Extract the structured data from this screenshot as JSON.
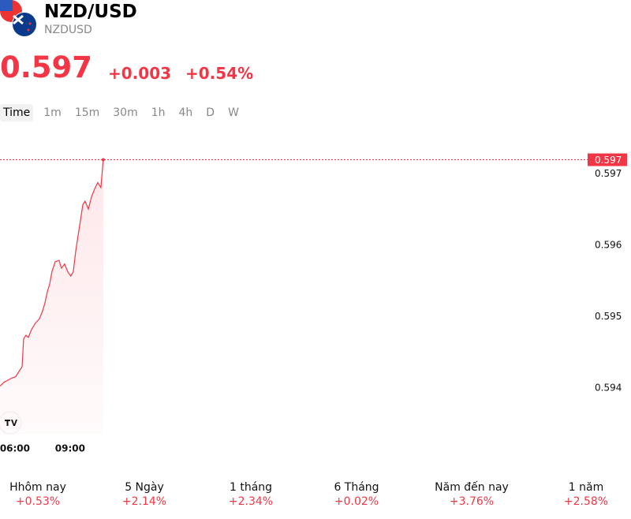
{
  "header": {
    "title": "NZD/USD",
    "symbol": "NZDUSD"
  },
  "quote": {
    "price": "0.597",
    "change": "+0.003",
    "change_percent": "+0.54%"
  },
  "tabs": [
    "Time",
    "1m",
    "15m",
    "30m",
    "1h",
    "4h",
    "D",
    "W"
  ],
  "chart_data": {
    "type": "line",
    "color": "#f23645",
    "x": [
      5.19,
      5.4,
      5.61,
      5.83,
      6.04,
      6.26,
      6.39,
      6.47,
      6.6,
      6.73,
      6.9,
      7.11,
      7.33,
      7.5,
      7.63,
      7.76,
      7.89,
      8.01,
      8.19,
      8.4,
      8.53,
      8.7,
      8.87,
      9.04,
      9.17,
      9.3,
      9.43,
      9.56,
      9.69,
      9.81,
      9.99,
      10.16,
      10.33,
      10.5,
      10.67,
      10.8
    ],
    "values": [
      0.59403,
      0.59408,
      0.59411,
      0.59414,
      0.59416,
      0.59425,
      0.5943,
      0.59469,
      0.59474,
      0.59471,
      0.59482,
      0.59491,
      0.59497,
      0.59508,
      0.59519,
      0.59535,
      0.59546,
      0.59563,
      0.59577,
      0.59579,
      0.59568,
      0.59574,
      0.59563,
      0.59557,
      0.59563,
      0.59591,
      0.59613,
      0.59635,
      0.59657,
      0.59662,
      0.59651,
      0.59668,
      0.59679,
      0.59688,
      0.59681,
      0.5972
    ],
    "xlim": [
      5.19,
      36.9
    ],
    "xticks": [
      {
        "value": 6,
        "label": "06:00"
      },
      {
        "value": 9,
        "label": "09:00"
      }
    ],
    "ylim": [
      0.59336,
      0.59767
    ],
    "yticks": [
      0.594,
      0.595,
      0.596,
      0.597
    ],
    "price_line": {
      "value": 0.5972,
      "label": "0.597"
    }
  },
  "performance": [
    {
      "period": "Hhôm nay",
      "change": "+0.53%"
    },
    {
      "period": "5 Ngày",
      "change": "+2.14%"
    },
    {
      "period": "1 tháng",
      "change": "+2.34%"
    },
    {
      "period": "6 Tháng",
      "change": "+0.02%"
    },
    {
      "period": "Năm đến nay",
      "change": "+3.76%"
    },
    {
      "period": "1 năm",
      "change": "+2.58%"
    }
  ]
}
